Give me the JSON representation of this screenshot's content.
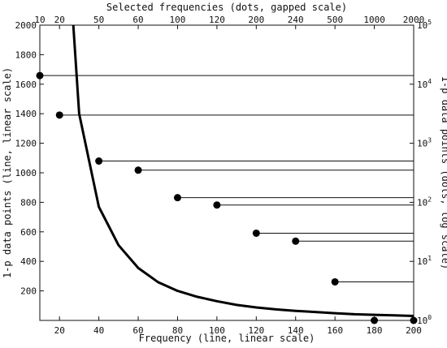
{
  "chart_data": {
    "type": "line+scatter",
    "line": {
      "x": [
        27,
        30,
        40,
        50,
        60,
        70,
        80,
        90,
        100,
        110,
        120,
        130,
        140,
        150,
        160,
        170,
        180,
        190,
        200
      ],
      "y": [
        2000,
        1400,
        770,
        510,
        355,
        260,
        200,
        160,
        130,
        105,
        88,
        75,
        65,
        57,
        49,
        42,
        38,
        34,
        30
      ]
    },
    "dots": {
      "x_positions": [
        10,
        20,
        40,
        60,
        80,
        100,
        120,
        140,
        160,
        180,
        200
      ],
      "labels": [
        "10",
        "20",
        "50",
        "60",
        "100",
        "120",
        "200",
        "240",
        "500",
        "1000",
        "2000"
      ],
      "y_log": [
        14000,
        3000,
        500,
        350,
        120,
        90,
        30,
        22,
        4.5,
        1,
        1
      ]
    },
    "xlabel": "Frequency (line, linear scale)",
    "ylabel": "1-p data points (line, linear scale)",
    "x2label": "Selected frequencies (dots, gapped scale)",
    "y2label": "1-p data points (dots, log scale)",
    "xlim": [
      10,
      200
    ],
    "ylim": [
      0,
      2000
    ],
    "y2lim": [
      1,
      100000
    ],
    "xticks": [
      "20",
      "40",
      "60",
      "80",
      "100",
      "120",
      "140",
      "160",
      "180",
      "200"
    ],
    "xtick_values": [
      20,
      40,
      60,
      80,
      100,
      120,
      140,
      160,
      180,
      200
    ],
    "yticks": [
      "200",
      "400",
      "600",
      "800",
      "1000",
      "1200",
      "1400",
      "1600",
      "1800",
      "2000"
    ],
    "ytick_values": [
      200,
      400,
      600,
      800,
      1000,
      1200,
      1400,
      1600,
      1800,
      2000
    ],
    "y2ticks": [
      {
        "base": "10",
        "exp": "0",
        "value": 1
      },
      {
        "base": "10",
        "exp": "1",
        "value": 10
      },
      {
        "base": "10",
        "exp": "2",
        "value": 100
      },
      {
        "base": "10",
        "exp": "3",
        "value": 1000
      },
      {
        "base": "10",
        "exp": "4",
        "value": 10000
      },
      {
        "base": "10",
        "exp": "5",
        "value": 100000
      }
    ],
    "grid": false
  }
}
